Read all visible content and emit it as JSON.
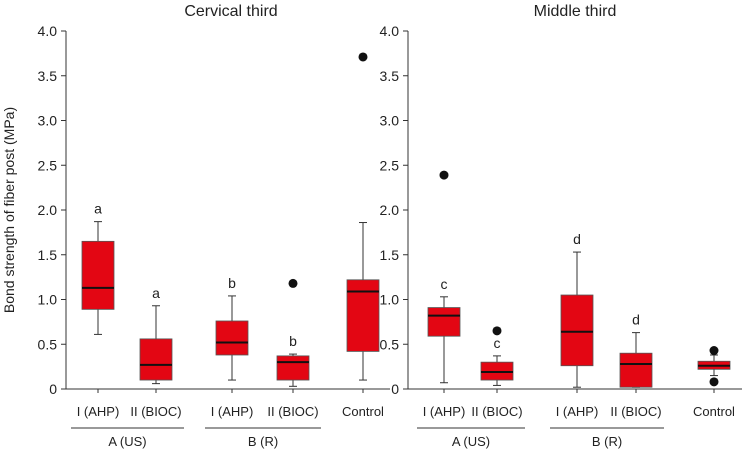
{
  "colors": {
    "box_fill": "#e30613",
    "outlier": "#111111"
  },
  "chart_data": {
    "type": "boxplot",
    "ylabel": "Bond strength of fiber post (MPa)",
    "ylim": [
      0,
      4.0
    ],
    "yticks": [
      "0",
      "0.5",
      "1.0",
      "1.5",
      "2.0",
      "2.5",
      "3.0",
      "3.5",
      "4.0"
    ],
    "grid": false,
    "panels": [
      {
        "title": "Cervical third",
        "boxes": [
          {
            "label": "I (AHP)",
            "min": 0.61,
            "q1": 0.89,
            "median": 1.13,
            "q3": 1.65,
            "max": 1.87,
            "outliers": [],
            "letter": "a"
          },
          {
            "label": "II (BIOC)",
            "min": 0.06,
            "q1": 0.1,
            "median": 0.27,
            "q3": 0.56,
            "max": 0.93,
            "outliers": [],
            "letter": "a"
          },
          {
            "label": "I (AHP)",
            "min": 0.1,
            "q1": 0.38,
            "median": 0.52,
            "q3": 0.76,
            "max": 1.04,
            "outliers": [],
            "letter": "b"
          },
          {
            "label": "II (BIOC)",
            "min": 0.03,
            "q1": 0.1,
            "median": 0.3,
            "q3": 0.37,
            "max": 0.39,
            "outliers": [
              1.18
            ],
            "letter": "b"
          },
          {
            "label": "Control",
            "min": 0.1,
            "q1": 0.42,
            "median": 1.09,
            "q3": 1.22,
            "max": 1.86,
            "outliers": [
              3.71
            ],
            "letter": ""
          }
        ],
        "groups": [
          {
            "label": "A (US)",
            "boxes": [
              0,
              1
            ]
          },
          {
            "label": "B (R)",
            "boxes": [
              2,
              3
            ]
          }
        ]
      },
      {
        "title": "Middle third",
        "boxes": [
          {
            "label": "I (AHP)",
            "min": 0.07,
            "q1": 0.59,
            "median": 0.82,
            "q3": 0.91,
            "max": 1.03,
            "outliers": [
              2.39
            ],
            "letter": "c"
          },
          {
            "label": "II (BIOC)",
            "min": 0.04,
            "q1": 0.1,
            "median": 0.19,
            "q3": 0.3,
            "max": 0.37,
            "outliers": [
              0.65
            ],
            "letter": "c"
          },
          {
            "label": "I (AHP)",
            "min": 0.02,
            "q1": 0.26,
            "median": 0.64,
            "q3": 1.05,
            "max": 1.53,
            "outliers": [],
            "letter": "d"
          },
          {
            "label": "II (BIOC)",
            "min": 0.02,
            "q1": 0.02,
            "median": 0.28,
            "q3": 0.4,
            "max": 0.63,
            "outliers": [],
            "letter": "d"
          },
          {
            "label": "Control",
            "min": 0.15,
            "q1": 0.22,
            "median": 0.26,
            "q3": 0.31,
            "max": 0.38,
            "outliers": [
              0.43,
              0.08
            ],
            "letter": ""
          }
        ],
        "groups": [
          {
            "label": "A (US)",
            "boxes": [
              0,
              1
            ]
          },
          {
            "label": "B (R)",
            "boxes": [
              2,
              3
            ]
          }
        ]
      }
    ]
  }
}
